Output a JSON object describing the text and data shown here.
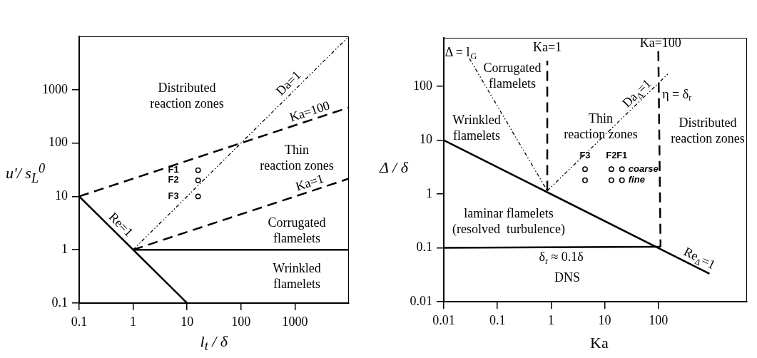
{
  "chart_data": [
    {
      "type": "line",
      "xlabel": "l$_{t}$ / δ",
      "ylabel": "u'/ s$_{L}$$^{0}$",
      "log": "xy",
      "xlim": [
        0.1,
        10000
      ],
      "ylim": [
        0.1,
        10000
      ],
      "xticks": [
        0.1,
        1,
        10,
        100,
        1000
      ],
      "yticks": [
        0.1,
        1,
        10,
        100,
        1000
      ],
      "grid": false,
      "legend": false,
      "series": [
        {
          "type": "line",
          "color": "#000000",
          "line_style": "solid",
          "x": [
            0.1,
            10
          ],
          "values": [
            10,
            0.1
          ]
        },
        {
          "type": "line",
          "color": "#000000",
          "line_style": "solid",
          "x": [
            1,
            10000
          ],
          "values": [
            1,
            1
          ]
        },
        {
          "type": "line",
          "color": "#000000",
          "line_style": "dashed",
          "x": [
            0.1,
            10000
          ],
          "values": [
            10,
            464
          ]
        },
        {
          "type": "line",
          "color": "#000000",
          "line_style": "dashed",
          "x": [
            1,
            10000
          ],
          "values": [
            1,
            21.5
          ]
        },
        {
          "type": "line",
          "color": "#000000",
          "line_style": "dotted",
          "x": [
            1,
            10000
          ],
          "values": [
            1,
            10000
          ]
        },
        {
          "type": "scatter",
          "color": "#000000",
          "marker": "circle",
          "x": [
            16,
            16,
            16
          ],
          "values": [
            31,
            20,
            10
          ]
        }
      ],
      "annotations": [
        "Distributed\nreaction zones",
        "Thin\nreaction zones",
        "Corrugated\nflamelets",
        "Wrinkled\nflamelets",
        {
          "text": "Da=1",
          "x": 1000,
          "y": 1000
        },
        {
          "text": "Ka=100",
          "x": 2100,
          "y": 276
        },
        {
          "text": "Ka=1",
          "x": 2100,
          "y": 12.8
        },
        {
          "text": "Re=1",
          "x": 0.45,
          "y": 2.22
        },
        {
          "text": "F1",
          "x": 16,
          "y": 31
        },
        {
          "text": "F2",
          "x": 16,
          "y": 20
        },
        {
          "text": "F3",
          "x": 16,
          "y": 10
        }
      ]
    },
    {
      "type": "line",
      "xlabel": "Ka",
      "ylabel": "Δ / δ",
      "log": "xy",
      "xlim": [
        0.01,
        4500
      ],
      "ylim": [
        0.01,
        800
      ],
      "xticks": [
        0.01,
        0.1,
        1,
        10,
        100
      ],
      "yticks": [
        0.01,
        0.1,
        1,
        10,
        100
      ],
      "grid": false,
      "legend": false,
      "series": [
        {
          "type": "line",
          "color": "#000000",
          "line_style": "solid",
          "x": [
            0.01,
            900
          ],
          "values": [
            10,
            0.033
          ]
        },
        {
          "type": "line",
          "color": "#000000",
          "line_style": "solid",
          "x": [
            0.01,
            110
          ],
          "values": [
            0.1,
            0.105
          ]
        },
        {
          "type": "line",
          "color": "#000000",
          "line_style": "dashed",
          "x": [
            0.85,
            0.85
          ],
          "values": [
            1.15,
            300
          ]
        },
        {
          "type": "line",
          "color": "#000000",
          "line_style": "dashed",
          "x": [
            100,
            110
          ],
          "values": [
            450,
            0.105
          ]
        },
        {
          "type": "line",
          "color": "#000000",
          "line_style": "dotted",
          "x": [
            0.03,
            0.85
          ],
          "values": [
            330,
            1.15
          ]
        },
        {
          "type": "line",
          "color": "#000000",
          "line_style": "dotted",
          "x": [
            0.85,
            155
          ],
          "values": [
            1.15,
            175
          ]
        },
        {
          "type": "scatter",
          "name": "coarse",
          "color": "#000000",
          "marker": "circle",
          "x": [
            4.3,
            13.3,
            21
          ],
          "values": [
            2.9,
            2.9,
            2.9
          ]
        },
        {
          "type": "scatter",
          "name": "fine",
          "color": "#000000",
          "marker": "circle",
          "x": [
            4.3,
            13.3,
            21
          ],
          "values": [
            1.8,
            1.8,
            1.8
          ]
        }
      ],
      "annotations": [
        {
          "text": "Ka=1",
          "x": 0.85,
          "y": 300
        },
        {
          "text": "Ka=100",
          "x": 100,
          "y": 450
        },
        {
          "text": "Δ = l$_{G}$",
          "x": 0.03,
          "y": 330
        },
        "Corrugated\nflamelets",
        "Wrinkled\nflamelets",
        "Thin\nreaction zones",
        "Distributed\nreaction zones",
        {
          "text": "Da$_{Δ}$=1",
          "x": 50,
          "y": 58.7
        },
        {
          "text": "η = δ$_{r}$",
          "x": 100,
          "y": 70
        },
        "laminar flamelets\n(resolved  turbulence)",
        {
          "text": "δ$_{r}$ ≈ 0.1δ",
          "x": 1.55,
          "y": 0.1
        },
        "DNS",
        {
          "text": "Re$_{Δ}$=1",
          "x": 490,
          "y": 0.045
        },
        {
          "text": "F3",
          "x": 4.3,
          "y": 2.9
        },
        {
          "text": "F2",
          "x": 13.3,
          "y": 2.9
        },
        {
          "text": "F1",
          "x": 21,
          "y": 2.9
        }
      ]
    }
  ]
}
